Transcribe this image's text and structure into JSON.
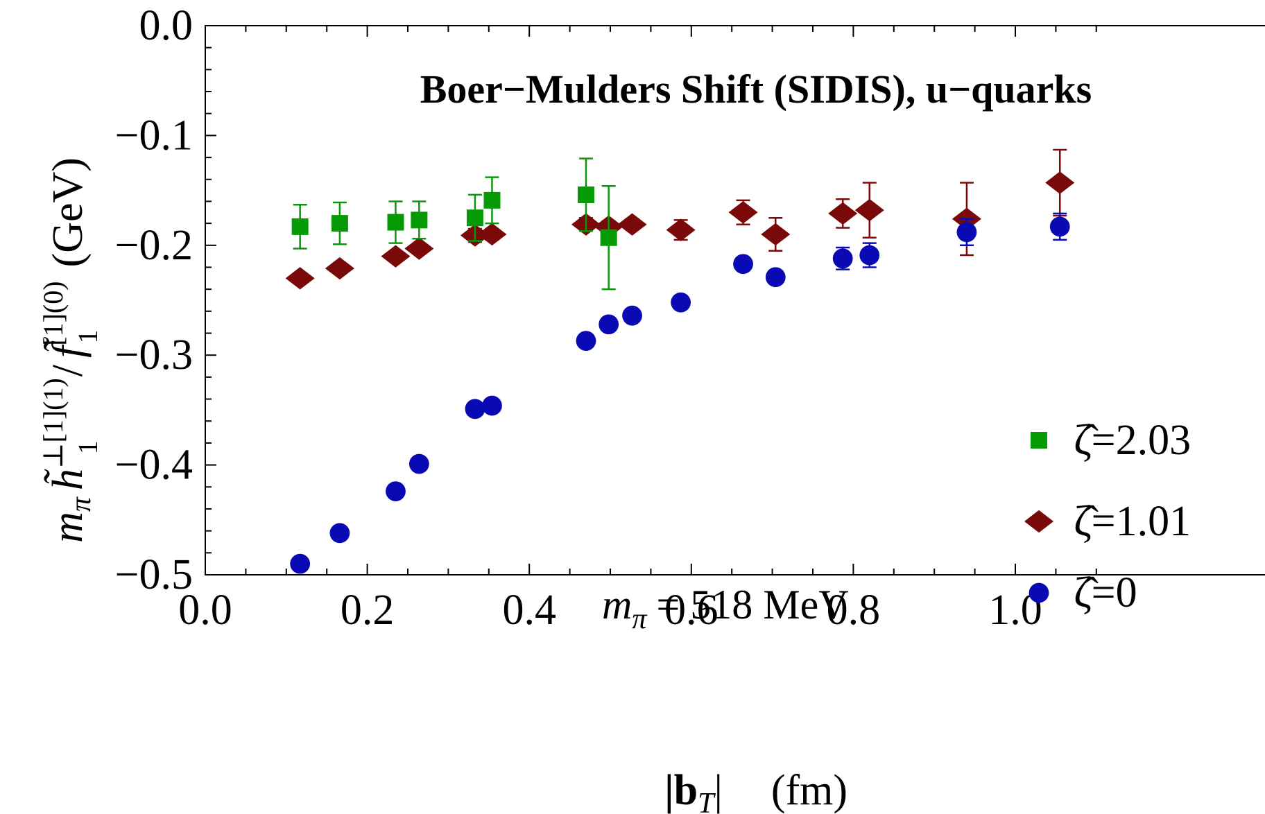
{
  "chart_data": {
    "type": "scatter",
    "title": "Boer−Mulders Shift (SIDIS), u−quarks",
    "xlabel": {
      "main": "|b",
      "sub": "T",
      "close": "|",
      "unit": "(fm)"
    },
    "ylabel": {
      "m": "m",
      "pi": "π",
      "h": "h̃",
      "h_sup": "⊥[1](1)",
      "h_sub": "1",
      "slash": "/",
      "f": "f̃",
      "f_sup": "[1](0)",
      "f_sub": "1",
      "unit": "(GeV)"
    },
    "xlim": [
      0,
      1.1
    ],
    "ylim": [
      -0.5,
      0
    ],
    "xticks": [
      "0.0",
      "0.2",
      "0.4",
      "0.6",
      "0.8",
      "1.0"
    ],
    "yticks": [
      "0.0",
      "−0.1",
      "−0.2",
      "−0.3",
      "−0.4",
      "−0.5"
    ],
    "grid": false,
    "legend_position": "bottom-right",
    "annotation": {
      "m": "m",
      "pi": "π",
      "rest": "= 518 MeV"
    },
    "series": [
      {
        "name": "ζ̂=2.03",
        "marker": "square",
        "color": "#079a07",
        "points": [
          {
            "x": 0.117,
            "y": -0.183,
            "err": 0.02
          },
          {
            "x": 0.166,
            "y": -0.18,
            "err": 0.019
          },
          {
            "x": 0.235,
            "y": -0.179,
            "err": 0.019
          },
          {
            "x": 0.264,
            "y": -0.177,
            "err": 0.017
          },
          {
            "x": 0.333,
            "y": -0.175,
            "err": 0.021
          },
          {
            "x": 0.354,
            "y": -0.159,
            "err": 0.021
          },
          {
            "x": 0.47,
            "y": -0.154,
            "err": 0.033
          },
          {
            "x": 0.498,
            "y": -0.193,
            "err": 0.047
          }
        ]
      },
      {
        "name": "ζ̂=1.01",
        "marker": "diamond",
        "color": "#7a0a0a",
        "points": [
          {
            "x": 0.117,
            "y": -0.23,
            "err": 0.004
          },
          {
            "x": 0.166,
            "y": -0.221,
            "err": 0.004
          },
          {
            "x": 0.235,
            "y": -0.21,
            "err": 0.004
          },
          {
            "x": 0.264,
            "y": -0.203,
            "err": 0.004
          },
          {
            "x": 0.333,
            "y": -0.191,
            "err": 0.006
          },
          {
            "x": 0.354,
            "y": -0.19,
            "err": 0.005
          },
          {
            "x": 0.47,
            "y": -0.181,
            "err": 0.006
          },
          {
            "x": 0.498,
            "y": -0.183,
            "err": 0.005
          },
          {
            "x": 0.527,
            "y": -0.181,
            "err": 0.005
          },
          {
            "x": 0.587,
            "y": -0.186,
            "err": 0.009
          },
          {
            "x": 0.664,
            "y": -0.17,
            "err": 0.011
          },
          {
            "x": 0.704,
            "y": -0.19,
            "err": 0.015
          },
          {
            "x": 0.787,
            "y": -0.171,
            "err": 0.013
          },
          {
            "x": 0.82,
            "y": -0.168,
            "err": 0.025
          },
          {
            "x": 0.94,
            "y": -0.176,
            "err": 0.033
          },
          {
            "x": 1.055,
            "y": -0.143,
            "err": 0.03
          }
        ]
      },
      {
        "name": "ζ̂=0",
        "marker": "circle",
        "color": "#0a0ab4",
        "points": [
          {
            "x": 0.117,
            "y": -0.49,
            "err": 0.003
          },
          {
            "x": 0.166,
            "y": -0.462,
            "err": 0.003
          },
          {
            "x": 0.235,
            "y": -0.424,
            "err": 0.003
          },
          {
            "x": 0.264,
            "y": -0.399,
            "err": 0.003
          },
          {
            "x": 0.333,
            "y": -0.349,
            "err": 0.004
          },
          {
            "x": 0.354,
            "y": -0.346,
            "err": 0.004
          },
          {
            "x": 0.47,
            "y": -0.287,
            "err": 0.004
          },
          {
            "x": 0.498,
            "y": -0.272,
            "err": 0.004
          },
          {
            "x": 0.527,
            "y": -0.264,
            "err": 0.004
          },
          {
            "x": 0.587,
            "y": -0.252,
            "err": 0.004
          },
          {
            "x": 0.664,
            "y": -0.217,
            "err": 0.005
          },
          {
            "x": 0.704,
            "y": -0.229,
            "err": 0.006
          },
          {
            "x": 0.787,
            "y": -0.212,
            "err": 0.01
          },
          {
            "x": 0.82,
            "y": -0.209,
            "err": 0.011
          },
          {
            "x": 0.94,
            "y": -0.188,
            "err": 0.012
          },
          {
            "x": 1.055,
            "y": -0.183,
            "err": 0.012
          }
        ]
      }
    ]
  }
}
